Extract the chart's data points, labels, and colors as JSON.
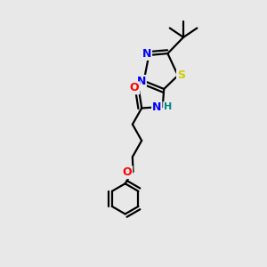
{
  "background_color": "#e8e8e8",
  "bond_color": "#000000",
  "atom_colors": {
    "N": "#0000ff",
    "O": "#ff0000",
    "S": "#cccc00",
    "H": "#008888",
    "C": "#000000"
  },
  "lw": 1.6,
  "fig_width": 3.0,
  "fig_height": 3.0,
  "dpi": 100,
  "xlim": [
    0,
    10
  ],
  "ylim": [
    0,
    10
  ]
}
